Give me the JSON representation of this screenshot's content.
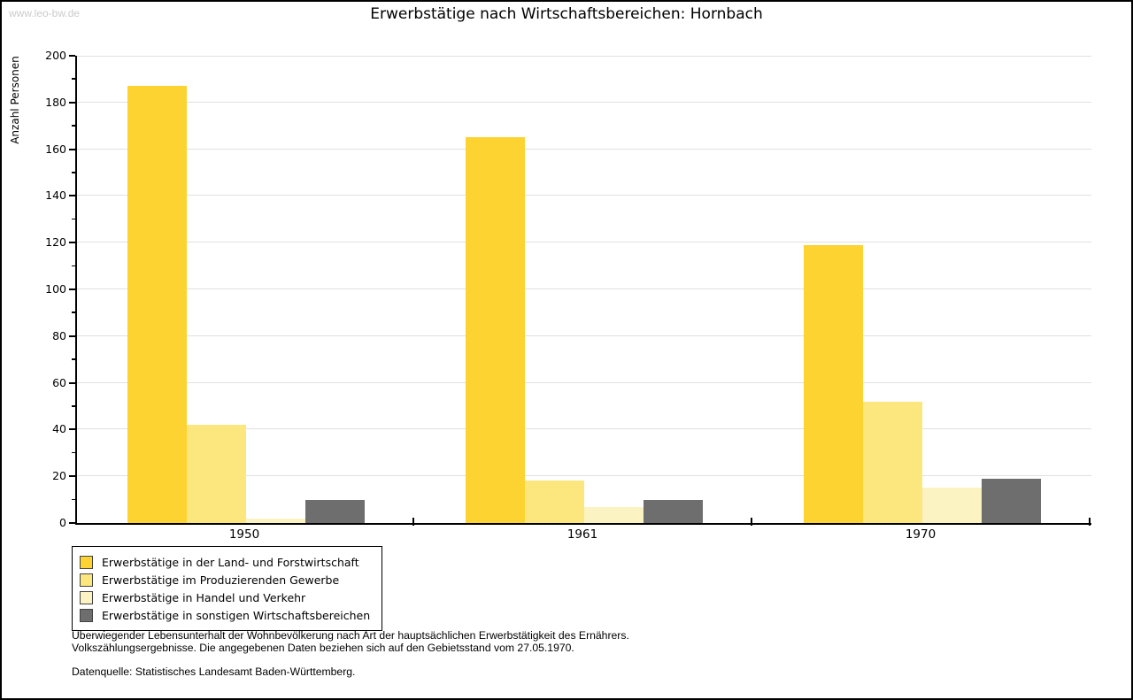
{
  "watermark": "www.leo-bw.de",
  "chart_data": {
    "type": "bar",
    "title": "Erwerbstätige nach Wirtschaftsbereichen: Hornbach",
    "ylabel": "Anzahl Personen",
    "xlabel": "",
    "categories": [
      "1950",
      "1961",
      "1970"
    ],
    "series": [
      {
        "name": "Erwerbstätige in der Land- und Forstwirtschaft",
        "color": "#fcd330",
        "values": [
          187,
          165,
          119
        ]
      },
      {
        "name": "Erwerbstätige im Produzierenden Gewerbe",
        "color": "#fbe77d",
        "values": [
          42,
          18,
          52
        ]
      },
      {
        "name": "Erwerbstätige in Handel und Verkehr",
        "color": "#fcf3c3",
        "values": [
          2,
          7,
          15
        ]
      },
      {
        "name": "Erwerbstätige in sonstigen Wirtschaftsbereichen",
        "color": "#6e6e6e",
        "values": [
          10,
          10,
          19
        ]
      }
    ],
    "ylim": [
      0,
      200
    ],
    "yticks": [
      0,
      20,
      40,
      60,
      80,
      100,
      120,
      140,
      160,
      180,
      200
    ],
    "minor_tick_step": 10,
    "grid": true,
    "legend_position": "bottom-left"
  },
  "colors": {
    "grid": "#e0e0e0",
    "axis": "#000000",
    "watermark": "#cccccc"
  },
  "footer": {
    "line1": "Überwiegender Lebensunterhalt der Wohnbevölkerung nach Art der hauptsächlichen Erwerbstätigkeit des Ernährers.",
    "line2": "Volkszählungsergebnisse. Die angegebenen Daten beziehen sich auf den Gebietsstand vom 27.05.1970.",
    "source": "Datenquelle: Statistisches Landesamt Baden-Württemberg."
  }
}
